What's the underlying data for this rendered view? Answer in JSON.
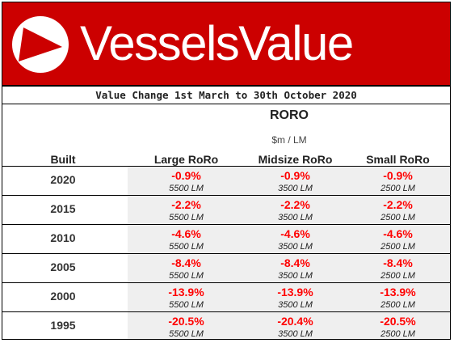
{
  "header": {
    "brand": "VesselsValue",
    "logo_icon": "triangle-play-icon",
    "brand_color": "#cc0000"
  },
  "subtitle": "Value Change 1st March to 30th October 2020",
  "segment": {
    "type": "RORO",
    "unit": "$m / LM"
  },
  "columns": {
    "built": "Built",
    "large": "Large RoRo",
    "midsize": "Midsize RoRo",
    "small": "Small RoRo"
  },
  "rows": [
    {
      "built": "2020",
      "large": "-0.9%",
      "large_lm": "5500 LM",
      "midsize": "-0.9%",
      "midsize_lm": "3500 LM",
      "small": "-0.9%",
      "small_lm": "2500 LM"
    },
    {
      "built": "2015",
      "large": "-2.2%",
      "large_lm": "5500 LM",
      "midsize": "-2.2%",
      "midsize_lm": "3500 LM",
      "small": "-2.2%",
      "small_lm": "2500 LM"
    },
    {
      "built": "2010",
      "large": "-4.6%",
      "large_lm": "5500 LM",
      "midsize": "-4.6%",
      "midsize_lm": "3500 LM",
      "small": "-4.6%",
      "small_lm": "2500 LM"
    },
    {
      "built": "2005",
      "large": "-8.4%",
      "large_lm": "5500 LM",
      "midsize": "-8.4%",
      "midsize_lm": "3500 LM",
      "small": "-8.4%",
      "small_lm": "2500 LM"
    },
    {
      "built": "2000",
      "large": "-13.9%",
      "large_lm": "5500 LM",
      "midsize": "-13.9%",
      "midsize_lm": "3500 LM",
      "small": "-13.9%",
      "small_lm": "2500 LM"
    },
    {
      "built": "1995",
      "large": "-20.5%",
      "large_lm": "5500 LM",
      "midsize": "-20.4%",
      "midsize_lm": "3500 LM",
      "small": "-20.5%",
      "small_lm": "2500 LM"
    }
  ],
  "value_color": "#ff0000"
}
